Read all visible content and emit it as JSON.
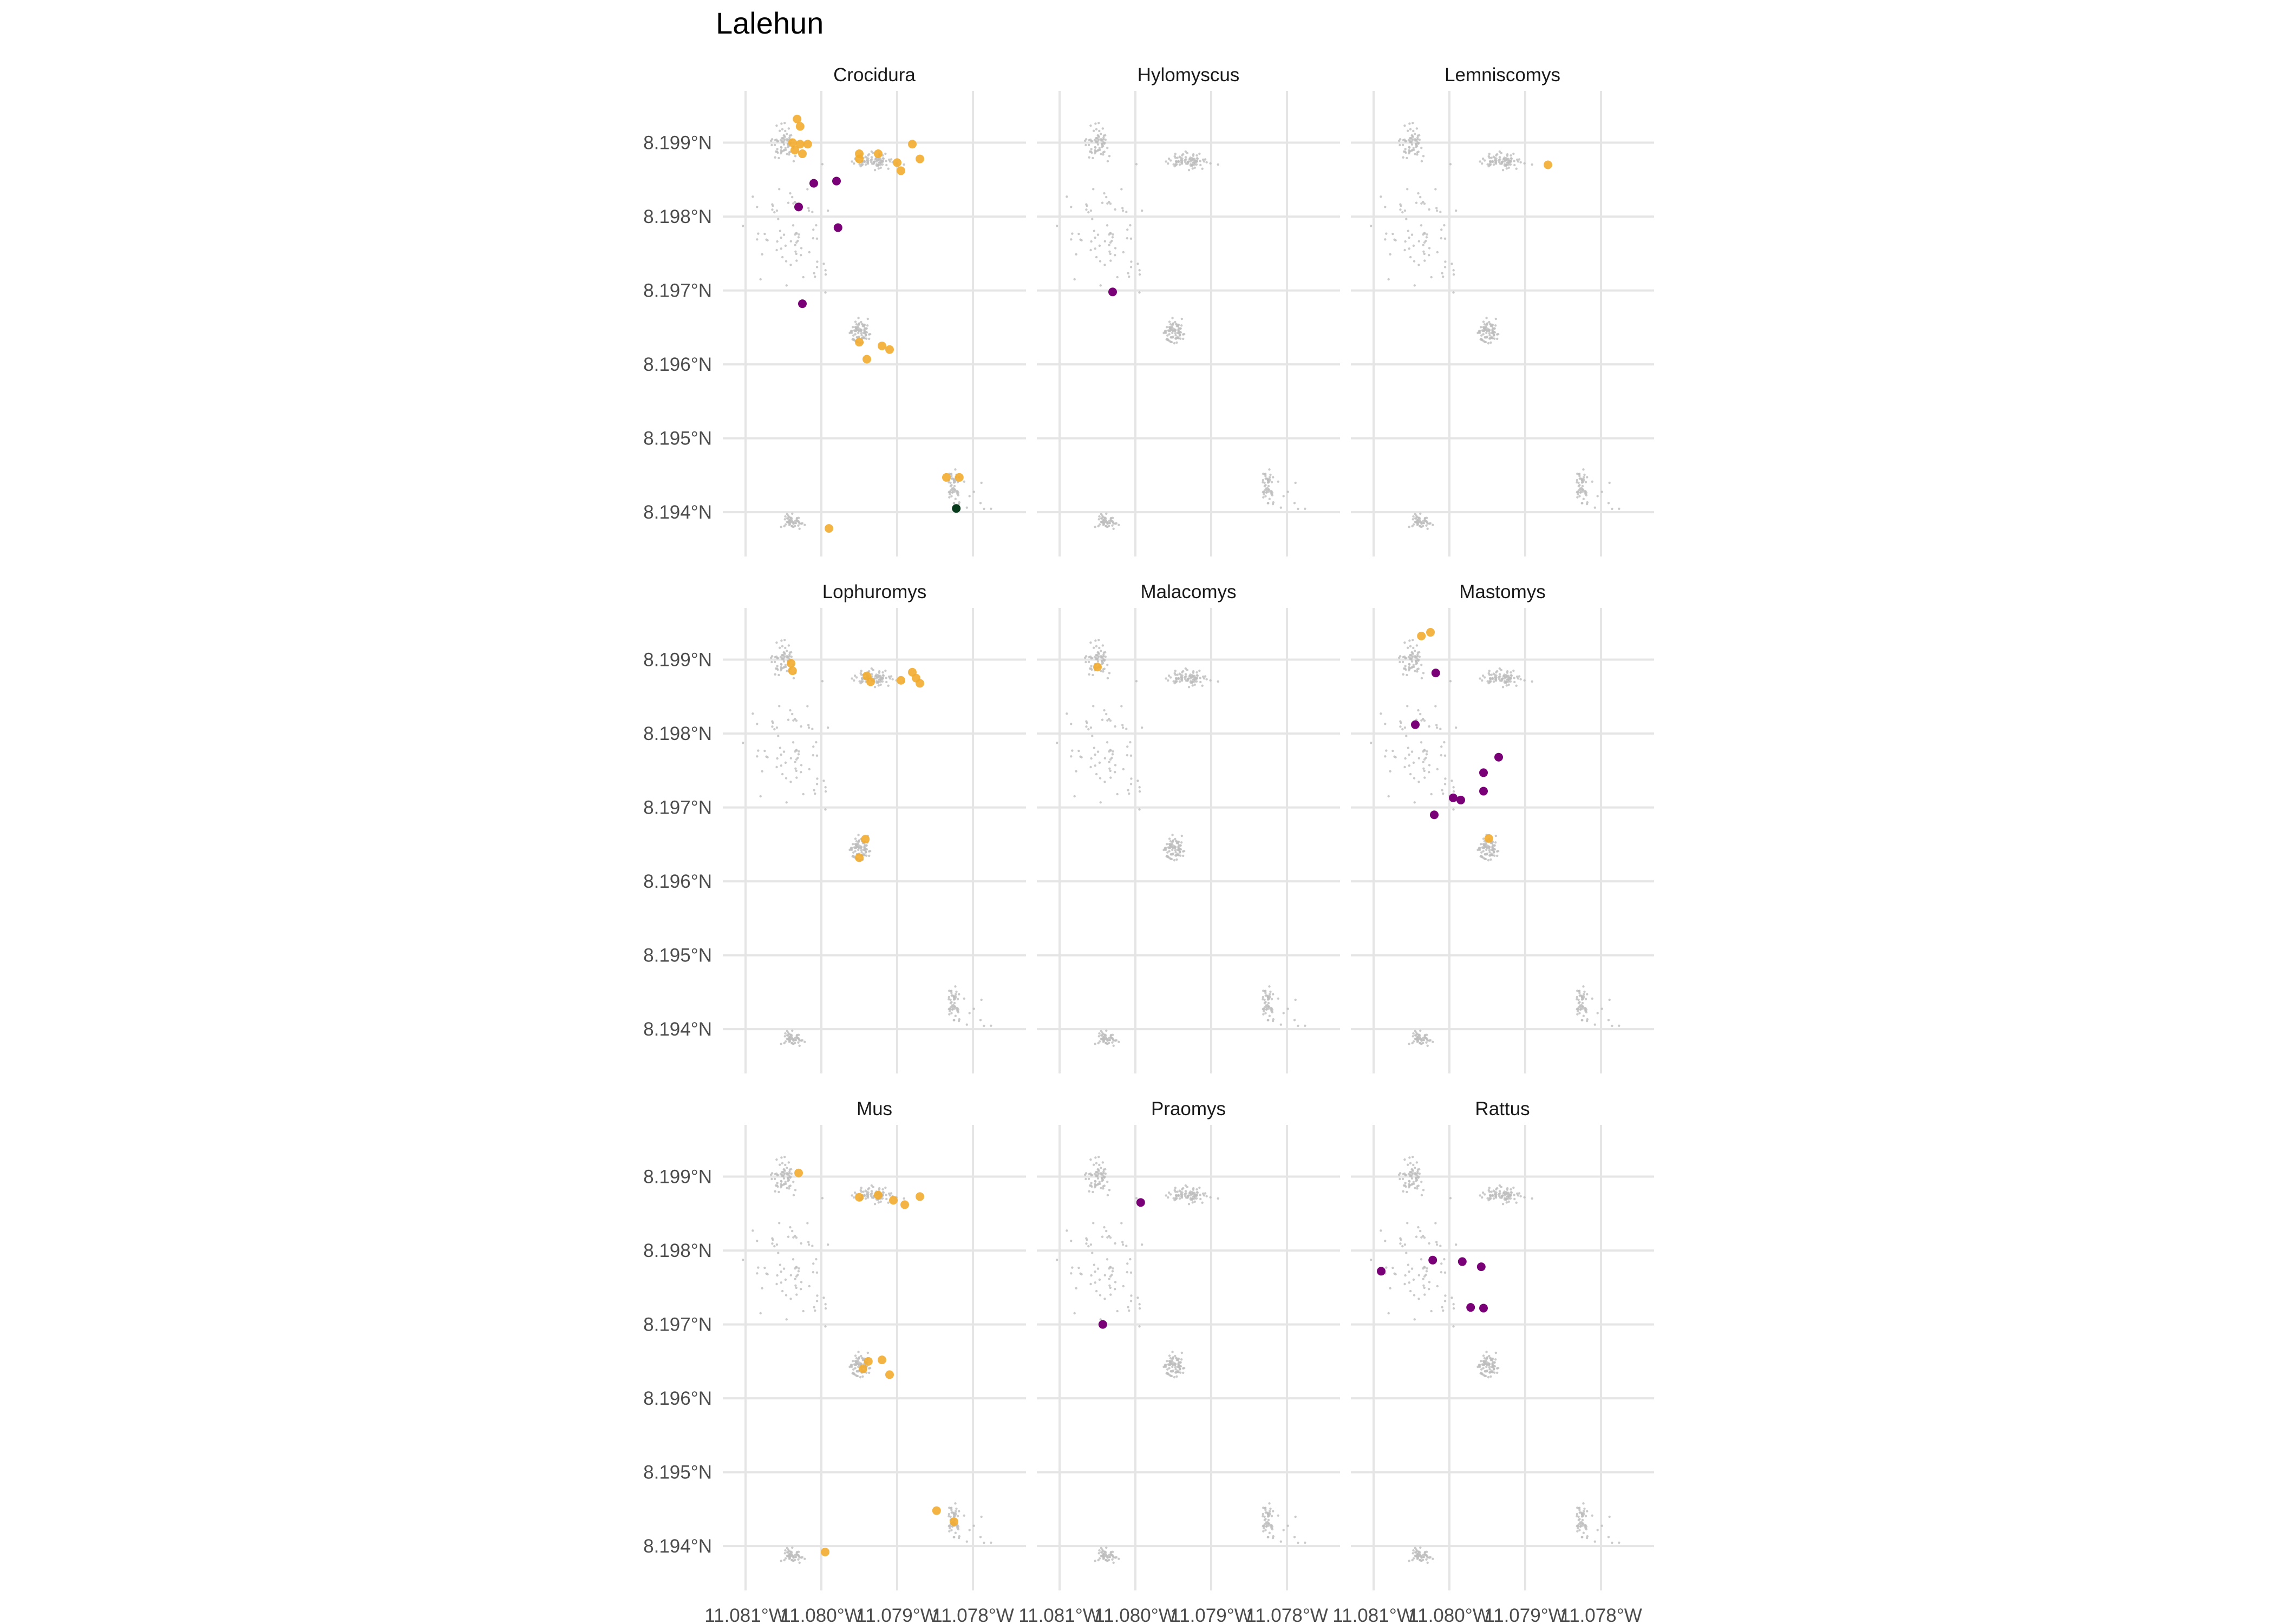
{
  "title": "Lalehun",
  "colors": {
    "background_points": "#bdbdbd",
    "orange": "#f2ac2f",
    "purple": "#7a0077",
    "dark_green": "#073b1c",
    "grid": "#e5e5e5",
    "tick_text": "#4d4d4d"
  },
  "chart_data": {
    "type": "scatter",
    "title": "Lalehun",
    "facet_layout": {
      "rows": 3,
      "cols": 3
    },
    "xlim": [
      -11.0813,
      -11.0773
    ],
    "ylim": [
      8.1934,
      8.1997
    ],
    "x_ticks": [
      -11.081,
      -11.08,
      -11.079,
      -11.078
    ],
    "x_tick_labels": [
      "11.081°W",
      "11.080°W",
      "11.079°W",
      "11.078°W"
    ],
    "y_ticks": [
      8.194,
      8.195,
      8.196,
      8.197,
      8.198,
      8.199
    ],
    "y_tick_labels": [
      "8.194°N",
      "8.195°N",
      "8.196°N",
      "8.197°N",
      "8.198°N",
      "8.199°N"
    ],
    "grid": true,
    "legend": "none",
    "background_clusters": [
      {
        "cx": -11.0805,
        "cy": 8.199,
        "sx": 0.00013,
        "sy": 0.00018,
        "n": 70
      },
      {
        "cx": -11.0793,
        "cy": 8.19875,
        "sx": 0.00024,
        "sy": 8e-05,
        "n": 90
      },
      {
        "cx": -11.0795,
        "cy": 8.19643,
        "sx": 0.00012,
        "sy": 0.00013,
        "n": 85
      },
      {
        "cx": -11.0804,
        "cy": 8.19388,
        "sx": 0.00012,
        "sy": 7e-05,
        "n": 55
      },
      {
        "cx": -11.07825,
        "cy": 8.19435,
        "sx": 6e-05,
        "sy": 0.00018,
        "n": 50
      },
      {
        "cx": -11.0804,
        "cy": 8.1978,
        "sx": 0.0005,
        "sy": 0.0006,
        "n": 70
      },
      {
        "cx": -11.078,
        "cy": 8.1942,
        "sx": 0.0003,
        "sy": 0.0002,
        "n": 10
      }
    ],
    "panels": [
      {
        "label": "Crocidura",
        "points": [
          {
            "x": -11.08032,
            "y": 8.19932,
            "c": "orange"
          },
          {
            "x": -11.08028,
            "y": 8.19922,
            "c": "orange"
          },
          {
            "x": -11.08038,
            "y": 8.199,
            "c": "orange"
          },
          {
            "x": -11.08028,
            "y": 8.19898,
            "c": "orange"
          },
          {
            "x": -11.08018,
            "y": 8.19898,
            "c": "orange"
          },
          {
            "x": -11.08035,
            "y": 8.1989,
            "c": "orange"
          },
          {
            "x": -11.08025,
            "y": 8.19885,
            "c": "orange"
          },
          {
            "x": -11.0795,
            "y": 8.19885,
            "c": "orange"
          },
          {
            "x": -11.0795,
            "y": 8.19878,
            "c": "orange"
          },
          {
            "x": -11.07925,
            "y": 8.19885,
            "c": "orange"
          },
          {
            "x": -11.079,
            "y": 8.19873,
            "c": "orange"
          },
          {
            "x": -11.07895,
            "y": 8.19862,
            "c": "orange"
          },
          {
            "x": -11.0788,
            "y": 8.19898,
            "c": "orange"
          },
          {
            "x": -11.0787,
            "y": 8.19878,
            "c": "orange"
          },
          {
            "x": -11.0795,
            "y": 8.1963,
            "c": "orange"
          },
          {
            "x": -11.0792,
            "y": 8.19625,
            "c": "orange"
          },
          {
            "x": -11.0791,
            "y": 8.1962,
            "c": "orange"
          },
          {
            "x": -11.0794,
            "y": 8.19607,
            "c": "orange"
          },
          {
            "x": -11.07835,
            "y": 8.19447,
            "c": "orange"
          },
          {
            "x": -11.07818,
            "y": 8.19447,
            "c": "orange"
          },
          {
            "x": -11.0799,
            "y": 8.19378,
            "c": "orange"
          },
          {
            "x": -11.0801,
            "y": 8.19845,
            "c": "purple"
          },
          {
            "x": -11.0798,
            "y": 8.19848,
            "c": "purple"
          },
          {
            "x": -11.0803,
            "y": 8.19813,
            "c": "purple"
          },
          {
            "x": -11.07978,
            "y": 8.19785,
            "c": "purple"
          },
          {
            "x": -11.08025,
            "y": 8.19682,
            "c": "purple"
          },
          {
            "x": -11.07822,
            "y": 8.19405,
            "c": "dark_green"
          }
        ]
      },
      {
        "label": "Hylomyscus",
        "points": [
          {
            "x": -11.0803,
            "y": 8.19698,
            "c": "purple"
          }
        ]
      },
      {
        "label": "Lemniscomys",
        "points": [
          {
            "x": -11.0787,
            "y": 8.1987,
            "c": "orange"
          }
        ]
      },
      {
        "label": "Lophuromys",
        "points": [
          {
            "x": -11.0804,
            "y": 8.19895,
            "c": "orange"
          },
          {
            "x": -11.08038,
            "y": 8.19885,
            "c": "orange"
          },
          {
            "x": -11.0794,
            "y": 8.19878,
            "c": "orange"
          },
          {
            "x": -11.07935,
            "y": 8.1987,
            "c": "orange"
          },
          {
            "x": -11.07895,
            "y": 8.19872,
            "c": "orange"
          },
          {
            "x": -11.0788,
            "y": 8.19883,
            "c": "orange"
          },
          {
            "x": -11.07875,
            "y": 8.19875,
            "c": "orange"
          },
          {
            "x": -11.0787,
            "y": 8.19868,
            "c": "orange"
          },
          {
            "x": -11.07942,
            "y": 8.19657,
            "c": "orange"
          },
          {
            "x": -11.0795,
            "y": 8.19632,
            "c": "orange"
          }
        ]
      },
      {
        "label": "Malacomys",
        "points": [
          {
            "x": -11.0805,
            "y": 8.1989,
            "c": "orange"
          }
        ]
      },
      {
        "label": "Mastomys",
        "points": [
          {
            "x": -11.08037,
            "y": 8.19932,
            "c": "orange"
          },
          {
            "x": -11.08025,
            "y": 8.19937,
            "c": "orange"
          },
          {
            "x": -11.07948,
            "y": 8.19658,
            "c": "orange"
          },
          {
            "x": -11.08018,
            "y": 8.19882,
            "c": "purple"
          },
          {
            "x": -11.08045,
            "y": 8.19812,
            "c": "purple"
          },
          {
            "x": -11.07935,
            "y": 8.19768,
            "c": "purple"
          },
          {
            "x": -11.07955,
            "y": 8.19747,
            "c": "purple"
          },
          {
            "x": -11.07955,
            "y": 8.19722,
            "c": "purple"
          },
          {
            "x": -11.07995,
            "y": 8.19713,
            "c": "purple"
          },
          {
            "x": -11.07985,
            "y": 8.1971,
            "c": "purple"
          },
          {
            "x": -11.0802,
            "y": 8.1969,
            "c": "purple"
          }
        ]
      },
      {
        "label": "Mus",
        "points": [
          {
            "x": -11.0803,
            "y": 8.19905,
            "c": "orange"
          },
          {
            "x": -11.0795,
            "y": 8.19872,
            "c": "orange"
          },
          {
            "x": -11.07925,
            "y": 8.19875,
            "c": "orange"
          },
          {
            "x": -11.07905,
            "y": 8.19868,
            "c": "orange"
          },
          {
            "x": -11.0789,
            "y": 8.19862,
            "c": "orange"
          },
          {
            "x": -11.0787,
            "y": 8.19873,
            "c": "orange"
          },
          {
            "x": -11.07938,
            "y": 8.1965,
            "c": "orange"
          },
          {
            "x": -11.0792,
            "y": 8.19652,
            "c": "orange"
          },
          {
            "x": -11.0791,
            "y": 8.19632,
            "c": "orange"
          },
          {
            "x": -11.07945,
            "y": 8.1964,
            "c": "orange"
          },
          {
            "x": -11.07848,
            "y": 8.19448,
            "c": "orange"
          },
          {
            "x": -11.07825,
            "y": 8.19433,
            "c": "orange"
          },
          {
            "x": -11.07995,
            "y": 8.19392,
            "c": "orange"
          }
        ]
      },
      {
        "label": "Praomys",
        "points": [
          {
            "x": -11.07993,
            "y": 8.19865,
            "c": "purple"
          },
          {
            "x": -11.08043,
            "y": 8.197,
            "c": "purple"
          }
        ]
      },
      {
        "label": "Rattus",
        "points": [
          {
            "x": -11.0809,
            "y": 8.19772,
            "c": "purple"
          },
          {
            "x": -11.08022,
            "y": 8.19787,
            "c": "purple"
          },
          {
            "x": -11.07983,
            "y": 8.19785,
            "c": "purple"
          },
          {
            "x": -11.07958,
            "y": 8.19778,
            "c": "purple"
          },
          {
            "x": -11.07972,
            "y": 8.19723,
            "c": "purple"
          },
          {
            "x": -11.07955,
            "y": 8.19722,
            "c": "purple"
          }
        ]
      }
    ]
  }
}
